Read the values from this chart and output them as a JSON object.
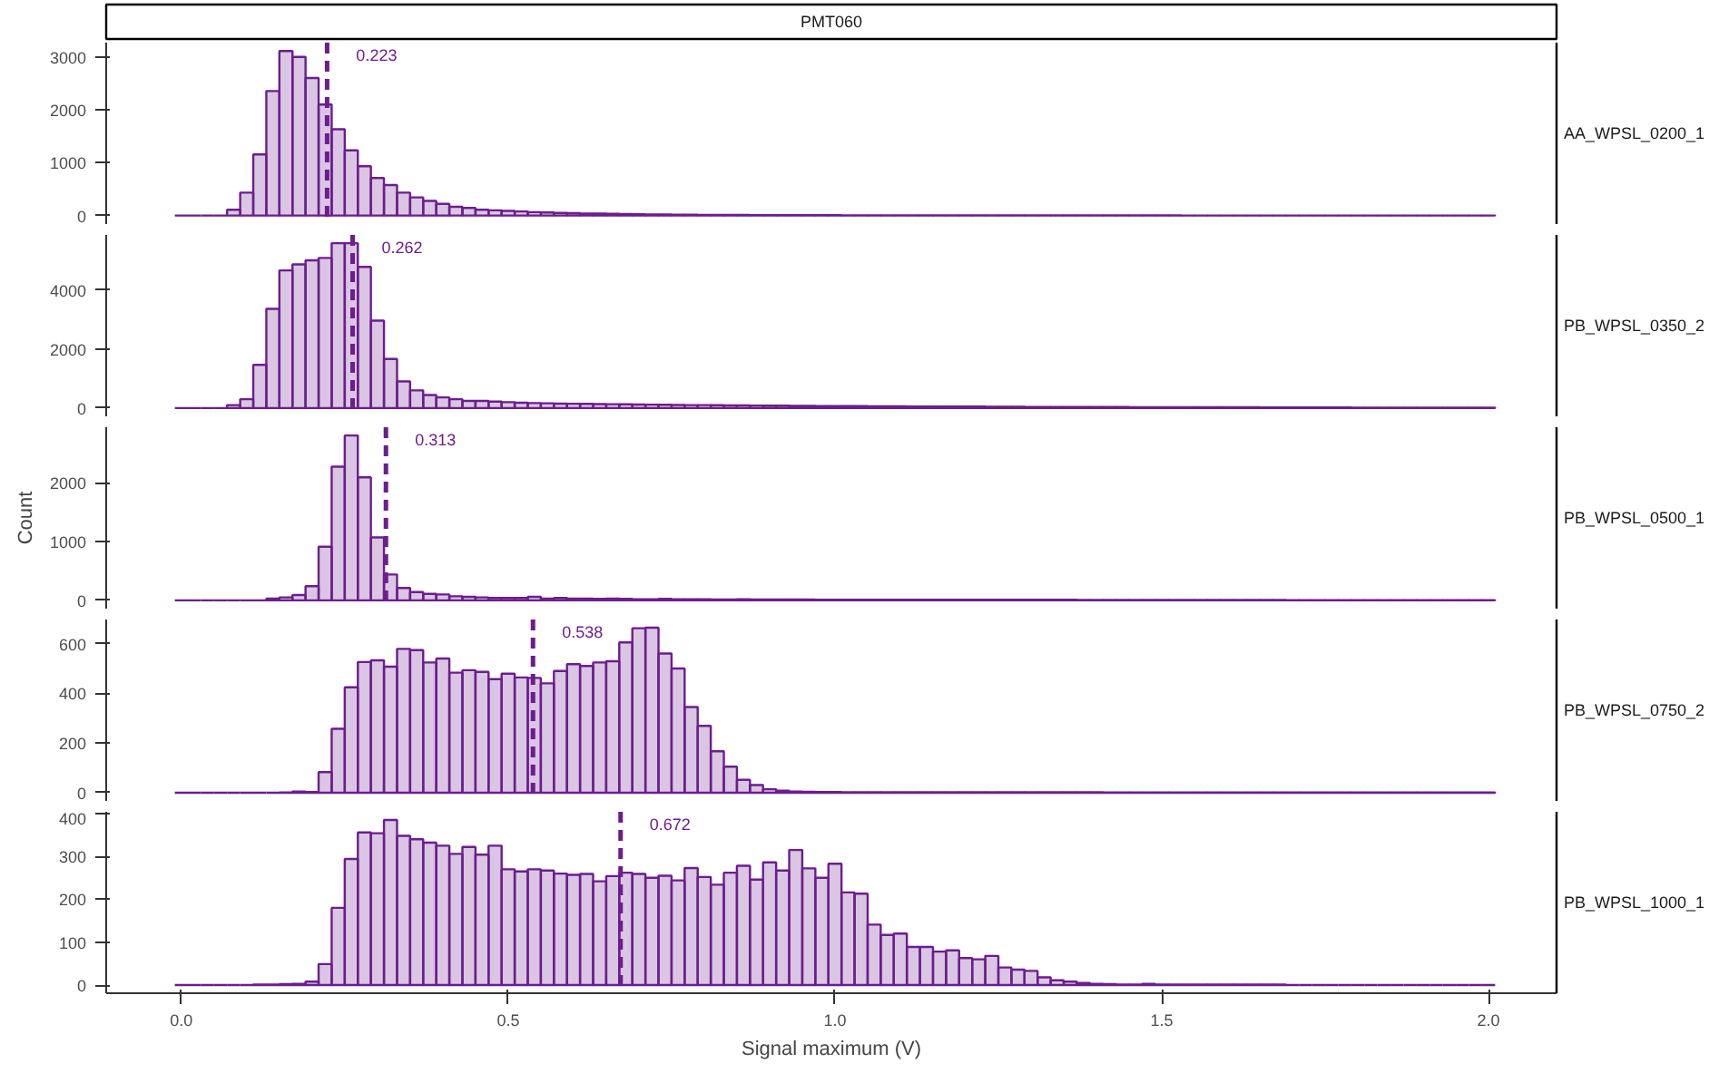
{
  "chart_data": [
    {
      "type": "histogram",
      "title": "PMT060",
      "subtitle": "AA_WPSL_0200_1",
      "bins": [
        -0.01,
        0.01,
        0.03,
        0.05,
        0.07,
        0.09,
        0.11,
        0.13,
        0.15,
        0.17,
        0.19,
        0.21,
        0.23,
        0.25,
        0.27,
        0.29,
        0.31,
        0.33,
        0.35,
        0.37,
        0.39,
        0.41,
        0.43,
        0.45,
        0.47,
        0.49,
        0.51,
        0.53,
        0.55,
        0.57,
        0.59,
        0.61,
        0.63,
        0.65,
        0.67,
        0.69,
        0.71,
        0.73,
        0.75,
        0.77,
        0.79,
        0.81,
        0.83,
        0.85,
        0.87,
        0.89,
        0.91,
        0.93,
        0.95,
        0.97,
        0.99,
        1.01,
        1.03,
        1.05,
        1.07,
        1.09,
        1.11,
        1.13,
        1.15,
        1.17,
        1.19,
        1.21,
        1.23,
        1.25,
        1.27,
        1.29,
        1.31,
        1.33,
        1.35,
        1.37,
        1.39,
        1.41,
        1.43,
        1.45,
        1.47,
        1.49,
        1.51,
        1.53,
        1.55,
        1.57,
        1.59,
        1.61,
        1.63,
        1.65,
        1.67,
        1.69,
        1.71,
        1.73,
        1.75,
        1.77,
        1.79,
        1.81,
        1.83,
        1.85,
        1.87,
        1.89,
        1.91,
        1.93,
        1.95,
        1.97,
        1.99,
        2.01
      ],
      "series": [
        {
          "color": "#6c1d8e",
          "values": [
            0,
            0,
            0,
            0,
            111,
            433,
            1155,
            2355,
            3111,
            3000,
            2600,
            2100,
            1633,
            1233,
            933,
            711,
            578,
            433,
            344,
            278,
            222,
            167,
            144,
            111,
            100,
            89,
            78,
            65,
            58,
            50,
            45,
            40,
            36,
            32,
            28,
            25,
            22,
            20,
            18,
            16,
            14,
            13,
            12,
            11,
            10,
            9,
            8,
            7,
            7,
            6,
            6,
            5,
            5,
            5,
            4,
            4,
            4,
            3,
            3,
            3,
            3,
            3,
            3,
            3,
            3,
            3,
            3,
            2,
            2,
            2,
            2,
            2,
            2,
            2,
            2,
            2,
            2,
            1,
            1,
            1,
            1,
            1,
            1,
            1,
            1,
            1,
            1,
            1,
            1,
            1,
            1,
            1,
            1,
            1,
            1,
            1,
            1,
            1,
            1,
            1,
            1
          ]
        }
      ],
      "xlim": [
        -0.115,
        2.104
      ],
      "ylim": [
        -160,
        3270
      ],
      "yticks": [
        0,
        1000,
        2000,
        3000
      ],
      "tick_labels": "y",
      "ref_lines": [
        {
          "axis": "x",
          "value": 0.223,
          "label": "0.223",
          "color": "#6c1d8e",
          "line_style": "dashed"
        }
      ]
    },
    {
      "type": "histogram",
      "subtitle": "PB_WPSL_0350_2",
      "bins": [
        -0.01,
        0.01,
        0.03,
        0.05,
        0.07,
        0.09,
        0.11,
        0.13,
        0.15,
        0.17,
        0.19,
        0.21,
        0.23,
        0.25,
        0.27,
        0.29,
        0.31,
        0.33,
        0.35,
        0.37,
        0.39,
        0.41,
        0.43,
        0.45,
        0.47,
        0.49,
        0.51,
        0.53,
        0.55,
        0.57,
        0.59,
        0.61,
        0.63,
        0.65,
        0.67,
        0.69,
        0.71,
        0.73,
        0.75,
        0.77,
        0.79,
        0.81,
        0.83,
        0.85,
        0.87,
        0.89,
        0.91,
        0.93,
        0.95,
        0.97,
        0.99,
        1.01,
        1.03,
        1.05,
        1.07,
        1.09,
        1.11,
        1.13,
        1.15,
        1.17,
        1.19,
        1.21,
        1.23,
        1.25,
        1.27,
        1.29,
        1.31,
        1.33,
        1.35,
        1.37,
        1.39,
        1.41,
        1.43,
        1.45,
        1.47,
        1.49,
        1.51,
        1.53,
        1.55,
        1.57,
        1.59,
        1.61,
        1.63,
        1.65,
        1.67,
        1.69,
        1.71,
        1.73,
        1.75,
        1.77,
        1.79,
        1.81,
        1.83,
        1.85,
        1.87,
        1.89,
        1.91,
        1.93,
        1.95,
        1.97,
        1.99,
        2.01
      ],
      "series": [
        {
          "color": "#6c1d8e",
          "values": [
            0,
            0,
            0,
            0,
            100,
            300,
            1460,
            3360,
            4660,
            4860,
            5000,
            5080,
            5580,
            5580,
            4780,
            2960,
            1660,
            900,
            600,
            440,
            360,
            300,
            240,
            240,
            220,
            200,
            180,
            170,
            160,
            150,
            145,
            140,
            135,
            130,
            125,
            120,
            115,
            110,
            105,
            100,
            100,
            95,
            90,
            90,
            85,
            80,
            80,
            75,
            75,
            70,
            70,
            65,
            65,
            60,
            60,
            60,
            55,
            55,
            55,
            50,
            50,
            50,
            45,
            45,
            45,
            40,
            40,
            40,
            40,
            35,
            35,
            35,
            35,
            30,
            30,
            30,
            30,
            30,
            25,
            25,
            25,
            25,
            25,
            20,
            20,
            20,
            20,
            20,
            20,
            20,
            15,
            15,
            15,
            15,
            15,
            15,
            15,
            15,
            15,
            10,
            10
          ]
        }
      ],
      "xlim": [
        -0.115,
        2.104
      ],
      "ylim": [
        -280,
        5860
      ],
      "yticks": [
        0,
        2000,
        4000
      ],
      "tick_labels": "y",
      "ref_lines": [
        {
          "axis": "x",
          "value": 0.262,
          "label": "0.262",
          "color": "#6c1d8e",
          "line_style": "dashed"
        }
      ]
    },
    {
      "type": "histogram",
      "subtitle": "PB_WPSL_0500_1",
      "ylabel": "Count",
      "bins": [
        -0.01,
        0.01,
        0.03,
        0.05,
        0.07,
        0.09,
        0.11,
        0.13,
        0.15,
        0.17,
        0.19,
        0.21,
        0.23,
        0.25,
        0.27,
        0.29,
        0.31,
        0.33,
        0.35,
        0.37,
        0.39,
        0.41,
        0.43,
        0.45,
        0.47,
        0.49,
        0.51,
        0.53,
        0.55,
        0.57,
        0.59,
        0.61,
        0.63,
        0.65,
        0.67,
        0.69,
        0.71,
        0.73,
        0.75,
        0.77,
        0.79,
        0.81,
        0.83,
        0.85,
        0.87,
        0.89,
        0.91,
        0.93,
        0.95,
        0.97,
        0.99,
        1.01,
        1.03,
        1.05,
        1.07,
        1.09,
        1.11,
        1.13,
        1.15,
        1.17,
        1.19,
        1.21,
        1.23,
        1.25,
        1.27,
        1.29,
        1.31,
        1.33,
        1.35,
        1.37,
        1.39,
        1.41,
        1.43,
        1.45,
        1.47,
        1.49,
        1.51,
        1.53,
        1.55,
        1.57,
        1.59,
        1.61,
        1.63,
        1.65,
        1.67,
        1.69,
        1.71,
        1.73,
        1.75,
        1.77,
        1.79,
        1.81,
        1.83,
        1.85,
        1.87,
        1.89,
        1.91,
        1.93,
        1.95,
        1.97,
        1.99,
        2.01
      ],
      "series": [
        {
          "color": "#6c1d8e",
          "values": [
            0,
            0,
            0,
            0,
            0,
            0,
            0,
            30,
            50,
            90,
            240,
            910,
            2270,
            2800,
            2090,
            1070,
            440,
            210,
            140,
            110,
            100,
            70,
            60,
            50,
            40,
            40,
            40,
            60,
            30,
            40,
            30,
            30,
            25,
            30,
            25,
            20,
            20,
            25,
            20,
            20,
            20,
            15,
            15,
            20,
            15,
            15,
            15,
            15,
            15,
            10,
            10,
            10,
            10,
            10,
            10,
            10,
            10,
            10,
            10,
            10,
            10,
            10,
            10,
            10,
            10,
            10,
            10,
            10,
            10,
            8,
            8,
            8,
            8,
            8,
            8,
            8,
            8,
            8,
            8,
            8,
            8,
            8,
            8,
            8,
            8,
            5,
            5,
            5,
            5,
            5,
            5,
            5,
            5,
            5,
            5,
            5,
            5,
            5,
            5,
            5,
            5
          ]
        }
      ],
      "xlim": [
        -0.115,
        2.104
      ],
      "ylim": [
        -140,
        2940
      ],
      "yticks": [
        0,
        1000,
        2000
      ],
      "tick_labels": "y",
      "ref_lines": [
        {
          "axis": "x",
          "value": 0.313,
          "label": "0.313",
          "color": "#6c1d8e",
          "line_style": "dashed"
        }
      ]
    },
    {
      "type": "histogram",
      "subtitle": "PB_WPSL_0750_2",
      "bins": [
        -0.01,
        0.01,
        0.03,
        0.05,
        0.07,
        0.09,
        0.11,
        0.13,
        0.15,
        0.17,
        0.19,
        0.21,
        0.23,
        0.25,
        0.27,
        0.29,
        0.31,
        0.33,
        0.35,
        0.37,
        0.39,
        0.41,
        0.43,
        0.45,
        0.47,
        0.49,
        0.51,
        0.53,
        0.55,
        0.57,
        0.59,
        0.61,
        0.63,
        0.65,
        0.67,
        0.69,
        0.71,
        0.73,
        0.75,
        0.77,
        0.79,
        0.81,
        0.83,
        0.85,
        0.87,
        0.89,
        0.91,
        0.93,
        0.95,
        0.97,
        0.99,
        1.01,
        1.03,
        1.05,
        1.07,
        1.09,
        1.11,
        1.13,
        1.15,
        1.17,
        1.19,
        1.21,
        1.23,
        1.25,
        1.27,
        1.29,
        1.31,
        1.33,
        1.35,
        1.37,
        1.39,
        1.41,
        1.43,
        1.45,
        1.47,
        1.49,
        1.51,
        1.53,
        1.55,
        1.57,
        1.59,
        1.61,
        1.63,
        1.65,
        1.67,
        1.69,
        1.71,
        1.73,
        1.75,
        1.77,
        1.79,
        1.81,
        1.83,
        1.85,
        1.87,
        1.89,
        1.91,
        1.93,
        1.95,
        1.97,
        1.99,
        2.01
      ],
      "series": [
        {
          "color": "#6c1d8e",
          "values": [
            0,
            0,
            0,
            0,
            0,
            0,
            0,
            0,
            1,
            5,
            3,
            83,
            257,
            424,
            526,
            533,
            507,
            579,
            574,
            524,
            540,
            483,
            493,
            486,
            457,
            479,
            464,
            462,
            440,
            490,
            517,
            510,
            524,
            529,
            605,
            662,
            664,
            560,
            500,
            345,
            269,
            167,
            105,
            52,
            31,
            14,
            8,
            5,
            4,
            3,
            3,
            2,
            2,
            2,
            2,
            2,
            2,
            2,
            2,
            2,
            2,
            2,
            2,
            2,
            2,
            2,
            2,
            2,
            2,
            2,
            2,
            1,
            1,
            1,
            1,
            1,
            1,
            1,
            1,
            1,
            1,
            1,
            1,
            1,
            1,
            1,
            1,
            1,
            1,
            1,
            1,
            1,
            1,
            1,
            1,
            1,
            1,
            1,
            1,
            1,
            1
          ]
        }
      ],
      "xlim": [
        -0.115,
        2.104
      ],
      "ylim": [
        -33,
        697
      ],
      "yticks": [
        0,
        200,
        400,
        600
      ],
      "tick_labels": "y",
      "ref_lines": [
        {
          "axis": "x",
          "value": 0.538,
          "label": "0.538",
          "color": "#6c1d8e",
          "line_style": "dashed"
        }
      ]
    },
    {
      "type": "histogram",
      "subtitle": "PB_WPSL_1000_1",
      "xlabel": "Signal maximum (V)",
      "bins": [
        -0.01,
        0.01,
        0.03,
        0.05,
        0.07,
        0.09,
        0.11,
        0.13,
        0.15,
        0.17,
        0.19,
        0.21,
        0.23,
        0.25,
        0.27,
        0.29,
        0.31,
        0.33,
        0.35,
        0.37,
        0.39,
        0.41,
        0.43,
        0.45,
        0.47,
        0.49,
        0.51,
        0.53,
        0.55,
        0.57,
        0.59,
        0.61,
        0.63,
        0.65,
        0.67,
        0.69,
        0.71,
        0.73,
        0.75,
        0.77,
        0.79,
        0.81,
        0.83,
        0.85,
        0.87,
        0.89,
        0.91,
        0.93,
        0.95,
        0.97,
        0.99,
        1.01,
        1.03,
        1.05,
        1.07,
        1.09,
        1.11,
        1.13,
        1.15,
        1.17,
        1.19,
        1.21,
        1.23,
        1.25,
        1.27,
        1.29,
        1.31,
        1.33,
        1.35,
        1.37,
        1.39,
        1.41,
        1.43,
        1.45,
        1.47,
        1.49,
        1.51,
        1.53,
        1.55,
        1.57,
        1.59,
        1.61,
        1.63,
        1.65,
        1.67,
        1.69,
        1.71,
        1.73,
        1.75,
        1.77,
        1.79,
        1.81,
        1.83,
        1.85,
        1.87,
        1.89,
        1.91,
        1.93,
        1.95,
        1.97,
        1.99,
        2.01
      ],
      "series": [
        {
          "color": "#6c1d8e",
          "values": [
            0,
            0,
            0,
            0,
            0,
            0,
            1,
            1,
            2,
            3,
            8,
            49,
            180,
            294,
            356,
            354,
            385,
            348,
            340,
            332,
            325,
            306,
            322,
            304,
            325,
            270,
            265,
            270,
            267,
            260,
            257,
            259,
            242,
            254,
            262,
            259,
            250,
            255,
            244,
            273,
            252,
            234,
            262,
            278,
            246,
            286,
            267,
            315,
            272,
            250,
            283,
            216,
            213,
            141,
            117,
            120,
            89,
            89,
            78,
            81,
            63,
            60,
            68,
            41,
            36,
            33,
            18,
            11,
            8,
            5,
            3,
            2,
            1,
            1,
            3,
            1,
            1,
            1,
            1,
            1,
            1,
            1,
            1,
            1,
            1,
            0,
            0,
            0,
            0,
            0,
            0,
            0,
            0,
            0,
            0,
            0,
            0,
            0,
            0,
            0,
            0
          ]
        }
      ],
      "xlim": [
        -0.115,
        2.104
      ],
      "ylim": [
        -19,
        404
      ],
      "yticks": [
        0,
        100,
        200,
        300,
        400
      ],
      "xticks": [
        {
          "value": 0,
          "label": "0.0"
        },
        {
          "value": 0.5,
          "label": "0.5"
        },
        {
          "value": 1,
          "label": "1.0"
        },
        {
          "value": 1.5,
          "label": "1.5"
        },
        {
          "value": 2,
          "label": "2.0"
        }
      ],
      "ref_lines": [
        {
          "axis": "x",
          "value": 0.672,
          "label": "0.672",
          "color": "#6c1d8e",
          "line_style": "dashed"
        }
      ]
    }
  ]
}
